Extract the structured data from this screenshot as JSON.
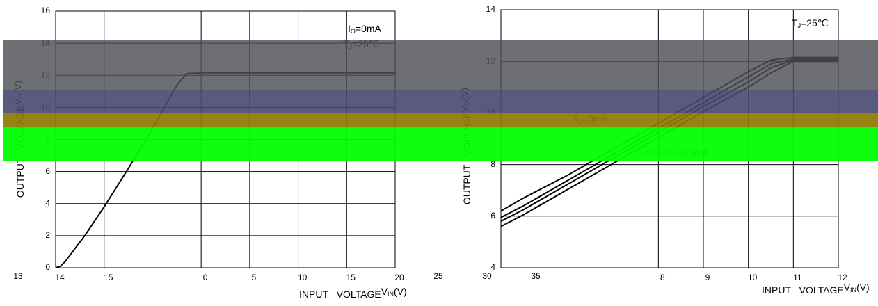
{
  "charts": [
    {
      "chart_data": {
        "type": "line",
        "x": [
          14,
          14.1,
          14.2,
          14.4,
          14.6,
          15,
          15.5,
          16,
          16.5,
          16.7,
          17,
          18,
          19,
          20,
          21
        ],
        "series": [
          {
            "color": "#000000",
            "values": [
              0,
              0.1,
              0.4,
              1.2,
              2.0,
              3.8,
              6.2,
              8.7,
              11.4,
              12.1,
              12.15,
              12.15,
              12.15,
              12.15,
              12.15
            ]
          }
        ],
        "xlim": [
          14,
          21
        ],
        "ylim": [
          0,
          16
        ],
        "xticks": [
          14,
          15,
          {
            "value": 17,
            "label": "0"
          },
          {
            "value": 18,
            "label": "5"
          },
          {
            "value": 19,
            "label": "10"
          },
          {
            "value": 20,
            "label": "15"
          },
          {
            "value": 21,
            "label": "20"
          }
        ],
        "yticks": [
          0,
          2,
          4,
          6,
          8,
          10,
          12,
          14,
          16
        ],
        "grid": true,
        "x_label": {
          "text": "INPUT VOLTAGE",
          "symbol": "V",
          "sub": "IN",
          "unit": "(V)"
        },
        "y_label": {
          "text": "OUTPUT VOLTAGE",
          "symbol": "V",
          "sub": "O",
          "unit": "(V)"
        },
        "annotations": [
          {
            "main": "I",
            "sub": "O",
            "rest": "=0mA"
          },
          {
            "main": "T",
            "sub": "J",
            "rest": "=25℃"
          }
        ],
        "stray_labels": [
          "13",
          "25",
          "30",
          "35"
        ]
      }
    },
    {
      "chart_data": {
        "type": "line",
        "x": [
          4.5,
          5,
          6,
          7,
          8,
          9,
          10,
          10.5,
          11,
          12
        ],
        "series": [
          {
            "color": "#000000",
            "values": [
              6.2,
              6.7,
              7.6,
              8.6,
              9.6,
              10.6,
              11.6,
              12.05,
              12.15,
              12.15
            ]
          },
          {
            "color": "#000000",
            "values": [
              5.95,
              6.4,
              7.4,
              8.4,
              9.4,
              10.4,
              11.4,
              11.9,
              12.1,
              12.1
            ]
          },
          {
            "color": "#000000",
            "values": [
              5.8,
              6.25,
              7.25,
              8.25,
              9.25,
              10.25,
              11.2,
              11.75,
              12.05,
              12.05
            ]
          },
          {
            "color": "#000000",
            "values": [
              5.6,
              6.05,
              7.05,
              8.05,
              9.05,
              10.05,
              11.0,
              11.55,
              12.0,
              12.0
            ]
          }
        ],
        "xlim": [
          4.5,
          12
        ],
        "ylim": [
          4,
          14
        ],
        "xticks": [
          8,
          9,
          10,
          11,
          12
        ],
        "yticks": [
          4,
          6,
          8,
          10,
          12,
          14
        ],
        "grid": true,
        "x_label": {
          "text": "INPUT VOLTAGE",
          "symbol": "V",
          "sub": "IN",
          "unit": "(V)"
        },
        "y_label": {
          "text": "OUTPUT VOLTAGE",
          "symbol": "V",
          "sub": "O",
          "unit": "(V)"
        },
        "annotations": [
          {
            "main": "T",
            "sub": "J",
            "rest": "=25℃"
          },
          {
            "main": "I",
            "sub": "O",
            "rest": "=0mA"
          },
          {
            "main": "I",
            "sub": "O",
            "rest": "=40,70,100mA"
          }
        ]
      }
    }
  ]
}
